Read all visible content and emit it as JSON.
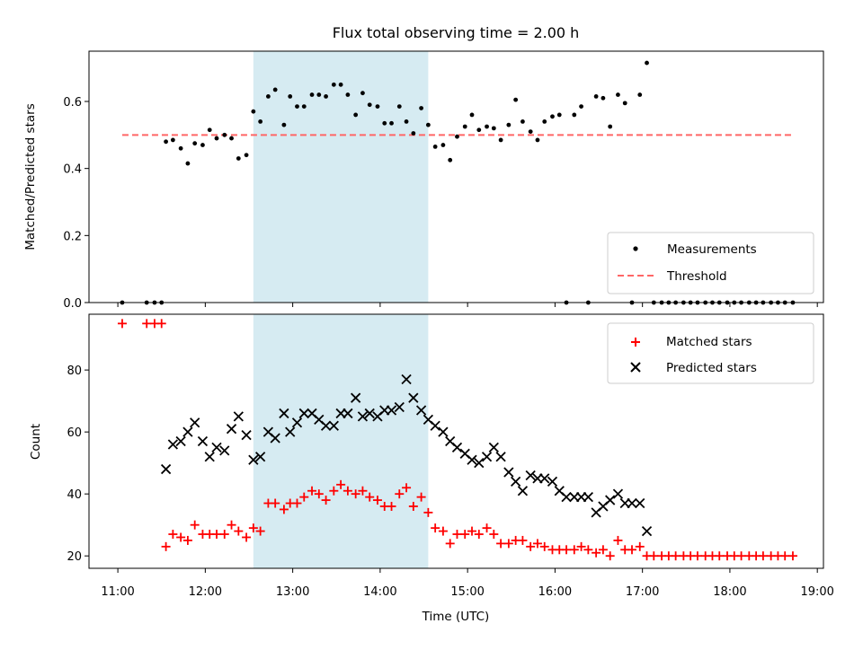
{
  "chart_data": {
    "type": "scatter",
    "title": "Flux total observing time = 2.00 h",
    "xlabel": "Time (UTC)",
    "x_unit": "hours UTC",
    "x_ticks": [
      "11:00",
      "12:00",
      "13:00",
      "14:00",
      "15:00",
      "16:00",
      "17:00",
      "18:00",
      "19:00"
    ],
    "xlim": [
      10.67,
      19.07
    ],
    "highlight_span": {
      "start": "12:33",
      "end": "14:33",
      "color": "#add8e6"
    },
    "panels": [
      {
        "ylabel": "Matched/Predicted stars",
        "ylim": [
          0,
          0.75
        ],
        "y_ticks": [
          "0.0",
          "0.2",
          "0.4",
          "0.6"
        ],
        "threshold": {
          "value": 0.5,
          "from": 11.05,
          "to": 18.7,
          "color": "#ff6666"
        },
        "legend": {
          "position": "bottom-right",
          "entries": [
            "Measurements",
            "Threshold"
          ]
        },
        "series": [
          {
            "name": "Measurements",
            "marker": "dot",
            "color": "#000000",
            "x": [
              11.05,
              11.33,
              11.42,
              11.5,
              11.55,
              11.63,
              11.72,
              11.8,
              11.88,
              11.97,
              12.05,
              12.13,
              12.22,
              12.3,
              12.38,
              12.47,
              12.55,
              12.63,
              12.72,
              12.8,
              12.9,
              12.97,
              13.05,
              13.13,
              13.22,
              13.3,
              13.38,
              13.47,
              13.55,
              13.63,
              13.72,
              13.8,
              13.88,
              13.97,
              14.05,
              14.13,
              14.22,
              14.3,
              14.38,
              14.47,
              14.55,
              14.63,
              14.72,
              14.8,
              14.88,
              14.97,
              15.05,
              15.13,
              15.22,
              15.3,
              15.38,
              15.47,
              15.55,
              15.63,
              15.72,
              15.8,
              15.88,
              15.97,
              16.05,
              16.13,
              16.22,
              16.3,
              16.38,
              16.47,
              16.55,
              16.63,
              16.72,
              16.8,
              16.88,
              16.97,
              17.05,
              17.13,
              17.22,
              17.3,
              17.38,
              17.47,
              17.55,
              17.63,
              17.72,
              17.8,
              17.88,
              17.97,
              18.05,
              18.13,
              18.22,
              18.3,
              18.38,
              18.47,
              18.55,
              18.63,
              18.72
            ],
            "y": [
              0,
              0,
              0,
              0,
              0.48,
              0.485,
              0.46,
              0.415,
              0.475,
              0.47,
              0.515,
              0.49,
              0.5,
              0.49,
              0.43,
              0.44,
              0.57,
              0.54,
              0.615,
              0.635,
              0.53,
              0.615,
              0.585,
              0.585,
              0.62,
              0.62,
              0.615,
              0.65,
              0.65,
              0.62,
              0.56,
              0.625,
              0.59,
              0.585,
              0.535,
              0.535,
              0.585,
              0.54,
              0.505,
              0.58,
              0.53,
              0.465,
              0.47,
              0.425,
              0.495,
              0.525,
              0.56,
              0.515,
              0.525,
              0.52,
              0.485,
              0.53,
              0.605,
              0.54,
              0.51,
              0.485,
              0.54,
              0.555,
              0.56,
              0,
              0.56,
              0.585,
              0,
              0.615,
              0.61,
              0.525,
              0.62,
              0.595,
              0,
              0.62,
              0.715,
              0,
              0,
              0,
              0,
              0,
              0,
              0,
              0,
              0,
              0,
              0,
              0,
              0,
              0,
              0,
              0,
              0,
              0,
              0,
              0
            ]
          }
        ]
      },
      {
        "ylabel": "Count",
        "ylim": [
          16,
          98
        ],
        "y_ticks": [
          "20",
          "40",
          "60",
          "80"
        ],
        "legend": {
          "position": "top-right",
          "entries": [
            "Matched stars",
            "Predicted stars"
          ]
        },
        "series": [
          {
            "name": "Matched stars",
            "marker": "plus",
            "color": "#ff0000",
            "x": [
              11.05,
              11.33,
              11.42,
              11.5,
              11.55,
              11.63,
              11.72,
              11.8,
              11.88,
              11.97,
              12.05,
              12.13,
              12.22,
              12.3,
              12.38,
              12.47,
              12.55,
              12.63,
              12.72,
              12.8,
              12.9,
              12.97,
              13.05,
              13.13,
              13.22,
              13.3,
              13.38,
              13.47,
              13.55,
              13.63,
              13.72,
              13.8,
              13.88,
              13.97,
              14.05,
              14.13,
              14.22,
              14.3,
              14.38,
              14.47,
              14.55,
              14.63,
              14.72,
              14.8,
              14.88,
              14.97,
              15.05,
              15.13,
              15.22,
              15.3,
              15.38,
              15.47,
              15.55,
              15.63,
              15.72,
              15.8,
              15.88,
              15.97,
              16.05,
              16.13,
              16.22,
              16.3,
              16.38,
              16.47,
              16.55,
              16.63,
              16.72,
              16.8,
              16.88,
              16.97,
              17.05,
              17.13,
              17.22,
              17.3,
              17.38,
              17.47,
              17.55,
              17.63,
              17.72,
              17.8,
              17.88,
              17.97,
              18.05,
              18.13,
              18.22,
              18.3,
              18.38,
              18.47,
              18.55,
              18.63,
              18.72
            ],
            "y": [
              95,
              95,
              95,
              95,
              23,
              27,
              26,
              25,
              30,
              27,
              27,
              27,
              27,
              30,
              28,
              26,
              29,
              28,
              37,
              37,
              35,
              37,
              37,
              39,
              41,
              40,
              38,
              41,
              43,
              41,
              40,
              41,
              39,
              38,
              36,
              36,
              40,
              42,
              36,
              39,
              34,
              29,
              28,
              24,
              27,
              27,
              28,
              27,
              29,
              27,
              24,
              24,
              25,
              25,
              23,
              24,
              23,
              22,
              22,
              22,
              22,
              23,
              22,
              21,
              22,
              20,
              25,
              22,
              22,
              23,
              20,
              20,
              20,
              20,
              20,
              20,
              20,
              20,
              20,
              20,
              20,
              20,
              20,
              20,
              20,
              20,
              20,
              20,
              20,
              20,
              20
            ]
          },
          {
            "name": "Predicted stars",
            "marker": "x",
            "color": "#000000",
            "x": [
              11.55,
              11.63,
              11.72,
              11.8,
              11.88,
              11.97,
              12.05,
              12.13,
              12.22,
              12.3,
              12.38,
              12.47,
              12.55,
              12.63,
              12.72,
              12.8,
              12.9,
              12.97,
              13.05,
              13.13,
              13.22,
              13.3,
              13.38,
              13.47,
              13.55,
              13.63,
              13.72,
              13.8,
              13.88,
              13.97,
              14.05,
              14.13,
              14.22,
              14.3,
              14.38,
              14.47,
              14.55,
              14.63,
              14.72,
              14.8,
              14.88,
              14.97,
              15.05,
              15.13,
              15.22,
              15.3,
              15.38,
              15.47,
              15.55,
              15.63,
              15.72,
              15.8,
              15.88,
              15.97,
              16.05,
              16.13,
              16.22,
              16.3,
              16.38,
              16.47,
              16.55,
              16.63,
              16.72,
              16.8,
              16.88,
              16.97,
              17.05
            ],
            "y": [
              48,
              56,
              57,
              60,
              63,
              57,
              52,
              55,
              54,
              61,
              65,
              59,
              51,
              52,
              60,
              58,
              66,
              60,
              63,
              66,
              66,
              64,
              62,
              62,
              66,
              66,
              71,
              65,
              66,
              65,
              67,
              67,
              68,
              77,
              71,
              67,
              64,
              62,
              60,
              57,
              55,
              53,
              51,
              50,
              52,
              55,
              52,
              47,
              44,
              41,
              46,
              45,
              45,
              44,
              41,
              39,
              39,
              39,
              39,
              34,
              36,
              38,
              40,
              37,
              37,
              37,
              28
            ]
          }
        ]
      }
    ]
  }
}
